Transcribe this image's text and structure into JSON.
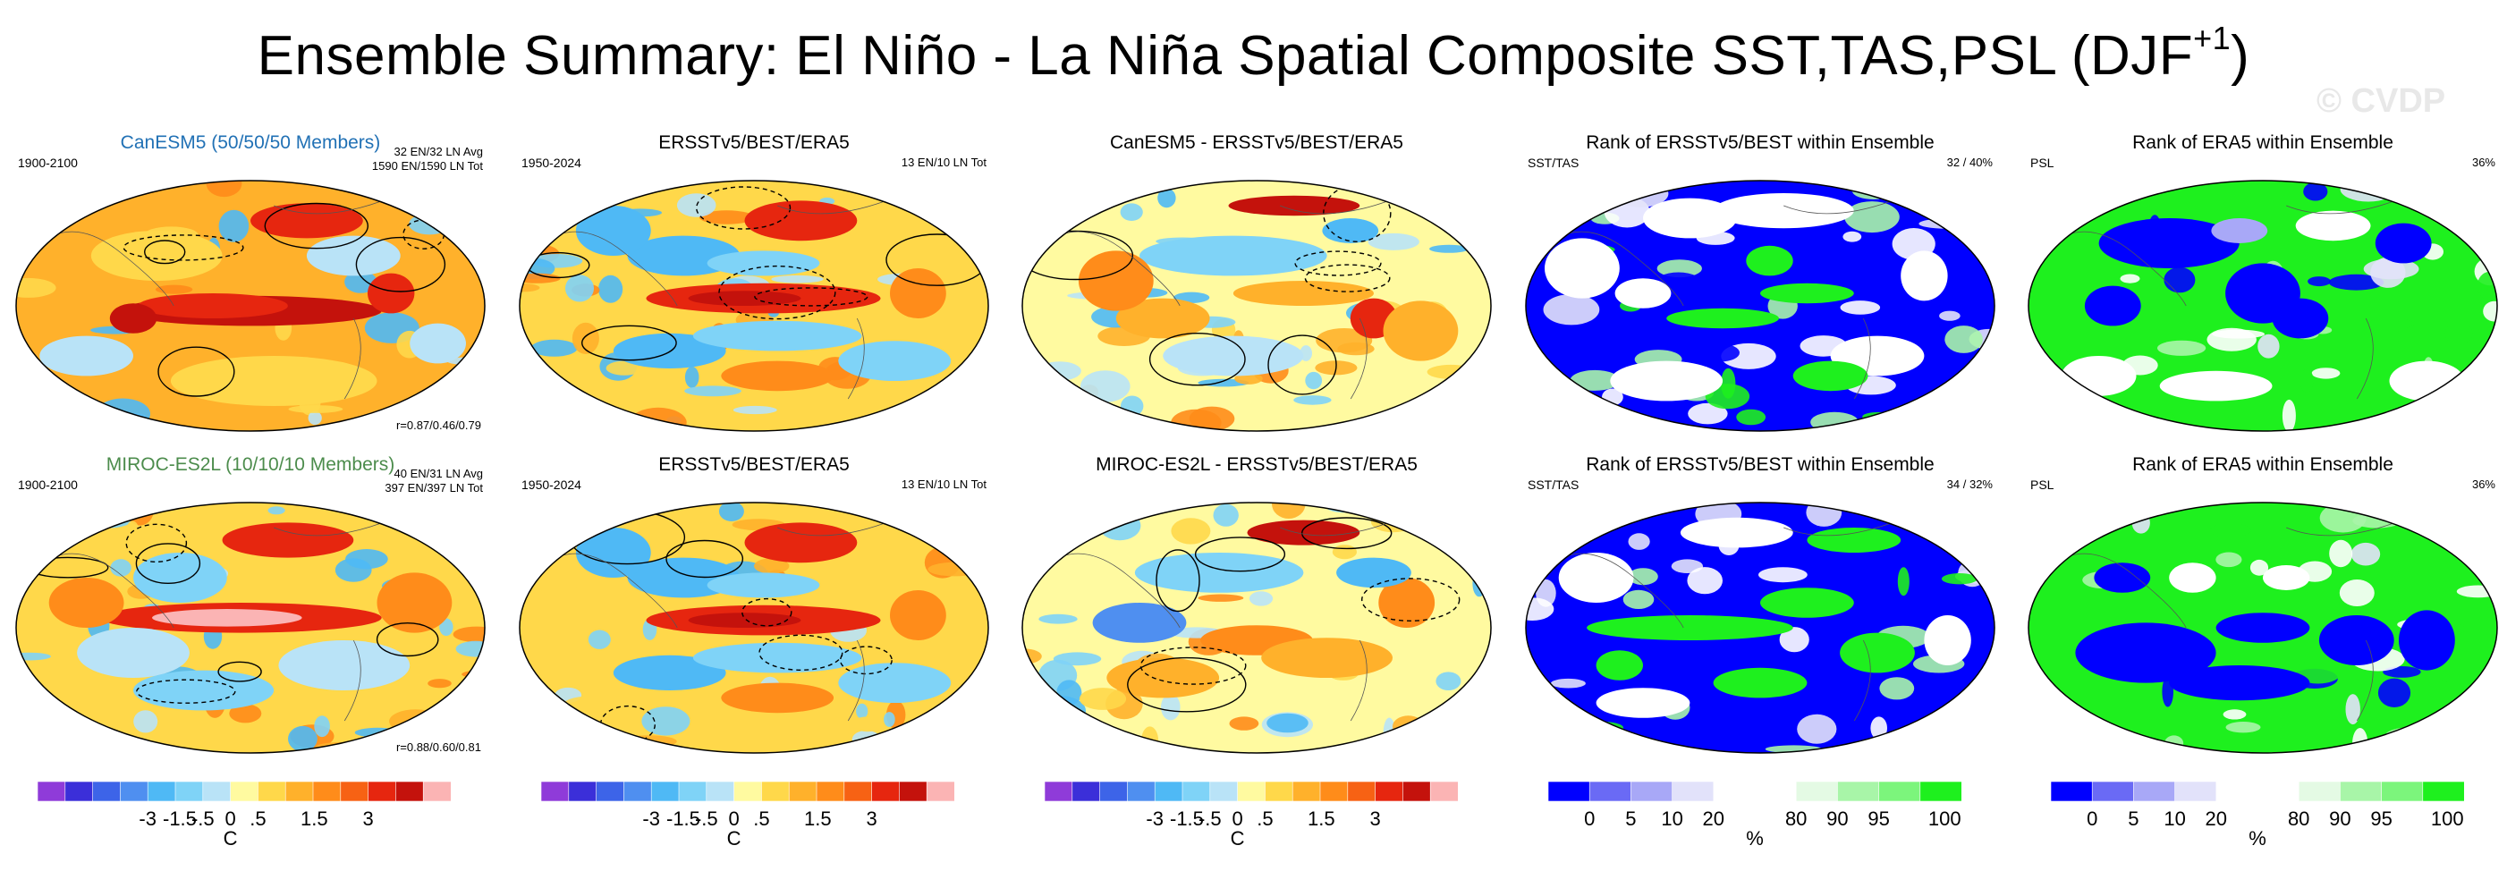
{
  "title": {
    "main": "Ensemble Summary: El Niño - La Niña Spatial Composite SST,TAS,PSL (DJF",
    "sup": "+1",
    "close": ")"
  },
  "watermark": "© CVDP",
  "chart_data": [
    {
      "type": "map",
      "id": "r1c1",
      "title": "CanESM5 (50/50/50 Members)",
      "title_color": "#2171b5",
      "left": "1900-2100",
      "right_lines": [
        "32 EN/32 LN Avg",
        "1590 EN/1590 LN Tot"
      ],
      "corr": "r=0.87/0.46/0.79",
      "variant": "model1"
    },
    {
      "type": "map",
      "id": "r1c2",
      "title": "ERSSTv5/BEST/ERA5",
      "left": "1950-2024",
      "right": "13 EN/10 LN Tot",
      "variant": "obs"
    },
    {
      "type": "map",
      "id": "r1c3",
      "title": "CanESM5 - ERSSTv5/BEST/ERA5",
      "variant": "diff1"
    },
    {
      "type": "map",
      "id": "r1c4",
      "title": "Rank of ERSSTv5/BEST within Ensemble",
      "left": "SST/TAS",
      "right": "32 /  40%",
      "variant": "rank1"
    },
    {
      "type": "map",
      "id": "r1c5",
      "title": "Rank of ERA5 within Ensemble",
      "left": "PSL",
      "right": "36%",
      "variant": "rank2"
    },
    {
      "type": "map",
      "id": "r2c1",
      "title": "MIROC-ES2L (10/10/10 Members)",
      "title_color": "#4c8c4c",
      "left": "1900-2100",
      "right_lines": [
        "40 EN/31 LN Avg",
        "397 EN/397 LN Tot"
      ],
      "corr": "r=0.88/0.60/0.81",
      "variant": "model2"
    },
    {
      "type": "map",
      "id": "r2c2",
      "title": "ERSSTv5/BEST/ERA5",
      "left": "1950-2024",
      "right": "13 EN/10 LN Tot",
      "variant": "obs"
    },
    {
      "type": "map",
      "id": "r2c3",
      "title": "MIROC-ES2L - ERSSTv5/BEST/ERA5",
      "variant": "diff2"
    },
    {
      "type": "map",
      "id": "r2c4",
      "title": "Rank of ERSSTv5/BEST within Ensemble",
      "left": "SST/TAS",
      "right": "34 /  32%",
      "variant": "rank3"
    },
    {
      "type": "map",
      "id": "r2c5",
      "title": "Rank of ERA5 within Ensemble",
      "left": "PSL",
      "right": "36%",
      "variant": "rank4"
    }
  ],
  "colorbars": {
    "temperature": {
      "colors": [
        "#8f3bd9",
        "#3b2fd9",
        "#3d64e8",
        "#4f8ff0",
        "#4fb9f5",
        "#7fd3f7",
        "#b9e3f7",
        "#fffaa0",
        "#ffd84a",
        "#ffb12b",
        "#ff8c1a",
        "#f76214",
        "#e6260f",
        "#c4120c",
        "#fbb4b4"
      ],
      "labels": [
        "-3",
        "-1.5",
        "-.5",
        "0",
        ".5",
        "1.5",
        "3"
      ],
      "unit": "C"
    },
    "rank": {
      "colors": [
        "#0000ff",
        "#6a6af5",
        "#a8a8f7",
        "#e2e2fa",
        "#ffffff",
        "#ffffff",
        "#e4fae4",
        "#a8f5a8",
        "#7cf57c",
        "#1ef01e"
      ],
      "labels": [
        "0",
        "5",
        "10",
        "20",
        "80",
        "90",
        "95",
        "100"
      ],
      "unit": "%"
    }
  }
}
